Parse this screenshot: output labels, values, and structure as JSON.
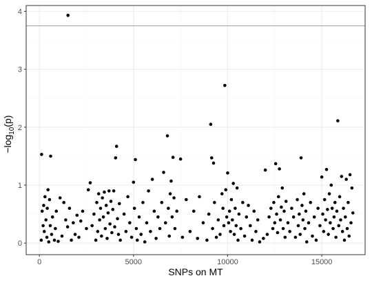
{
  "chart_data": {
    "type": "scatter",
    "title": "",
    "xlabel": "SNPs on MT",
    "ylabel": "-log10(p)",
    "xlim": [
      -700,
      17300
    ],
    "ylim": [
      -0.2,
      4.1
    ],
    "x_ticks": [
      0,
      5000,
      10000,
      15000
    ],
    "x_tick_labels": [
      "0",
      "5000",
      "10000",
      "15000"
    ],
    "y_ticks": [
      0,
      1,
      2,
      3,
      4
    ],
    "y_tick_labels": [
      "0",
      "1",
      "2",
      "3",
      "4"
    ],
    "grid": true,
    "legend": "none",
    "threshold_line": {
      "y": 3.75,
      "color": "#f08080"
    },
    "colors": {
      "points": "#000000",
      "panel_border": "#333333",
      "grid_major": "#ebebeb",
      "grid_minor": "#f5f5f5",
      "tick_text": "#4d4d4d"
    },
    "points": [
      [
        100,
        0.05
      ],
      [
        120,
        1.53
      ],
      [
        150,
        0.55
      ],
      [
        200,
        0.3
      ],
      [
        230,
        0.65
      ],
      [
        260,
        0.2
      ],
      [
        300,
        0.8
      ],
      [
        350,
        0.4
      ],
      [
        400,
        0.1
      ],
      [
        420,
        0.6
      ],
      [
        460,
        0.92
      ],
      [
        500,
        0.02
      ],
      [
        540,
        0.75
      ],
      [
        580,
        0.3
      ],
      [
        600,
        1.5
      ],
      [
        650,
        0.15
      ],
      [
        700,
        0.45
      ],
      [
        800,
        0.05
      ],
      [
        850,
        0.25
      ],
      [
        900,
        0.55
      ],
      [
        1000,
        0.03
      ],
      [
        1100,
        0.78
      ],
      [
        1200,
        0.12
      ],
      [
        1300,
        0.7
      ],
      [
        1400,
        0.4
      ],
      [
        1500,
        0.28
      ],
      [
        1520,
        3.93
      ],
      [
        1600,
        0.6
      ],
      [
        1700,
        0.05
      ],
      [
        1800,
        0.35
      ],
      [
        1900,
        0.15
      ],
      [
        2000,
        0.48
      ],
      [
        2100,
        0.1
      ],
      [
        2200,
        0.38
      ],
      [
        2300,
        0.55
      ],
      [
        2500,
        0.25
      ],
      [
        2600,
        0.92
      ],
      [
        2700,
        1.04
      ],
      [
        2800,
        0.3
      ],
      [
        2900,
        0.5
      ],
      [
        3000,
        0.05
      ],
      [
        3050,
        0.7
      ],
      [
        3100,
        0.2
      ],
      [
        3150,
        0.85
      ],
      [
        3200,
        0.4
      ],
      [
        3250,
        0.6
      ],
      [
        3300,
        0.12
      ],
      [
        3350,
        0.78
      ],
      [
        3400,
        0.45
      ],
      [
        3450,
        0.88
      ],
      [
        3500,
        0.25
      ],
      [
        3550,
        0.65
      ],
      [
        3600,
        0.08
      ],
      [
        3650,
        0.52
      ],
      [
        3700,
        0.9
      ],
      [
        3750,
        0.33
      ],
      [
        3800,
        0.72
      ],
      [
        3850,
        0.18
      ],
      [
        3900,
        0.58
      ],
      [
        3950,
        0.9
      ],
      [
        4000,
        0.28
      ],
      [
        4050,
        1.47
      ],
      [
        4100,
        1.67
      ],
      [
        4150,
        0.42
      ],
      [
        4200,
        0.15
      ],
      [
        4250,
        0.68
      ],
      [
        4300,
        0.05
      ],
      [
        4500,
        0.5
      ],
      [
        4600,
        0.2
      ],
      [
        4700,
        0.8
      ],
      [
        4800,
        0.35
      ],
      [
        4900,
        0.1
      ],
      [
        5000,
        1.05
      ],
      [
        5050,
        0.6
      ],
      [
        5100,
        1.44
      ],
      [
        5150,
        0.25
      ],
      [
        5200,
        0.05
      ],
      [
        5300,
        0.45
      ],
      [
        5400,
        0.15
      ],
      [
        5500,
        0.7
      ],
      [
        5600,
        0.02
      ],
      [
        5700,
        0.35
      ],
      [
        5800,
        0.9
      ],
      [
        5900,
        0.2
      ],
      [
        6000,
        1.1
      ],
      [
        6100,
        0.55
      ],
      [
        6200,
        0.08
      ],
      [
        6300,
        0.45
      ],
      [
        6400,
        0.25
      ],
      [
        6500,
        0.7
      ],
      [
        6600,
        1.22
      ],
      [
        6700,
        0.35
      ],
      [
        6800,
        1.85
      ],
      [
        6850,
        0.6
      ],
      [
        6900,
        0.12
      ],
      [
        6950,
        0.85
      ],
      [
        7000,
        1.07
      ],
      [
        7050,
        0.45
      ],
      [
        7100,
        1.48
      ],
      [
        7150,
        0.78
      ],
      [
        7200,
        0.25
      ],
      [
        7300,
        0.55
      ],
      [
        7500,
        1.45
      ],
      [
        7600,
        0.1
      ],
      [
        7800,
        0.75
      ],
      [
        8000,
        0.2
      ],
      [
        8200,
        0.55
      ],
      [
        8400,
        0.08
      ],
      [
        8500,
        0.8
      ],
      [
        8700,
        0.35
      ],
      [
        8900,
        0.05
      ],
      [
        9000,
        0.5
      ],
      [
        9100,
        2.05
      ],
      [
        9150,
        1.47
      ],
      [
        9200,
        0.25
      ],
      [
        9250,
        1.38
      ],
      [
        9300,
        0.7
      ],
      [
        9400,
        0.1
      ],
      [
        9500,
        0.4
      ],
      [
        9600,
        0.15
      ],
      [
        9700,
        0.85
      ],
      [
        9750,
        0.6
      ],
      [
        9800,
        0.3
      ],
      [
        9850,
        2.72
      ],
      [
        9900,
        0.92
      ],
      [
        9950,
        0.45
      ],
      [
        10000,
        1.21
      ],
      [
        10050,
        0.35
      ],
      [
        10100,
        0.55
      ],
      [
        10150,
        0.2
      ],
      [
        10200,
        0.75
      ],
      [
        10250,
        0.4
      ],
      [
        10300,
        1.03
      ],
      [
        10350,
        0.15
      ],
      [
        10400,
        0.6
      ],
      [
        10450,
        0.3
      ],
      [
        10500,
        0.95
      ],
      [
        10550,
        0.05
      ],
      [
        10600,
        0.5
      ],
      [
        10700,
        0.25
      ],
      [
        10800,
        0.7
      ],
      [
        10900,
        0.12
      ],
      [
        11000,
        0.45
      ],
      [
        11100,
        0.65
      ],
      [
        11200,
        0.3
      ],
      [
        11300,
        0.05
      ],
      [
        11400,
        0.55
      ],
      [
        11500,
        0.2
      ],
      [
        11600,
        0.4
      ],
      [
        11700,
        0.02
      ],
      [
        11900,
        0.08
      ],
      [
        12000,
        1.26
      ],
      [
        12100,
        0.15
      ],
      [
        12200,
        0.45
      ],
      [
        12300,
        0.6
      ],
      [
        12400,
        0.25
      ],
      [
        12450,
        0.7
      ],
      [
        12500,
        0.35
      ],
      [
        12550,
        1.37
      ],
      [
        12600,
        0.5
      ],
      [
        12650,
        0.18
      ],
      [
        12700,
        0.8
      ],
      [
        12750,
        1.28
      ],
      [
        12800,
        0.4
      ],
      [
        12850,
        0.62
      ],
      [
        12900,
        0.95
      ],
      [
        12950,
        0.25
      ],
      [
        13000,
        0.55
      ],
      [
        13050,
        0.1
      ],
      [
        13100,
        0.72
      ],
      [
        13200,
        0.35
      ],
      [
        13300,
        0.2
      ],
      [
        13400,
        0.6
      ],
      [
        13500,
        0.45
      ],
      [
        13600,
        0.1
      ],
      [
        13700,
        0.75
      ],
      [
        13750,
        0.3
      ],
      [
        13800,
        0.5
      ],
      [
        13850,
        0.15
      ],
      [
        13900,
        1.47
      ],
      [
        13950,
        0.65
      ],
      [
        14000,
        0.4
      ],
      [
        14050,
        0.85
      ],
      [
        14100,
        0.25
      ],
      [
        14150,
        0.55
      ],
      [
        14200,
        0.02
      ],
      [
        14300,
        0.35
      ],
      [
        14400,
        0.7
      ],
      [
        14500,
        0.12
      ],
      [
        14600,
        0.45
      ],
      [
        14700,
        0.05
      ],
      [
        14800,
        0.6
      ],
      [
        14900,
        0.3
      ],
      [
        15000,
        1.14
      ],
      [
        15050,
        0.5
      ],
      [
        15100,
        0.2
      ],
      [
        15150,
        0.75
      ],
      [
        15200,
        0.4
      ],
      [
        15250,
        1.27
      ],
      [
        15300,
        0.58
      ],
      [
        15350,
        0.15
      ],
      [
        15400,
        0.85
      ],
      [
        15450,
        0.35
      ],
      [
        15500,
        1.0
      ],
      [
        15550,
        0.6
      ],
      [
        15600,
        0.25
      ],
      [
        15650,
        0.45
      ],
      [
        15700,
        0.7
      ],
      [
        15750,
        0.1
      ],
      [
        15800,
        0.55
      ],
      [
        15850,
        2.11
      ],
      [
        15900,
        0.3
      ],
      [
        15950,
        0.8
      ],
      [
        16000,
        0.4
      ],
      [
        16050,
        1.15
      ],
      [
        16100,
        0.2
      ],
      [
        16150,
        0.6
      ],
      [
        16200,
        0.05
      ],
      [
        16250,
        0.45
      ],
      [
        16300,
        1.1
      ],
      [
        16350,
        0.25
      ],
      [
        16400,
        0.7
      ],
      [
        16450,
        0.12
      ],
      [
        16500,
        1.18
      ],
      [
        16550,
        0.35
      ],
      [
        16600,
        0.95
      ],
      [
        16650,
        0.52
      ]
    ]
  }
}
